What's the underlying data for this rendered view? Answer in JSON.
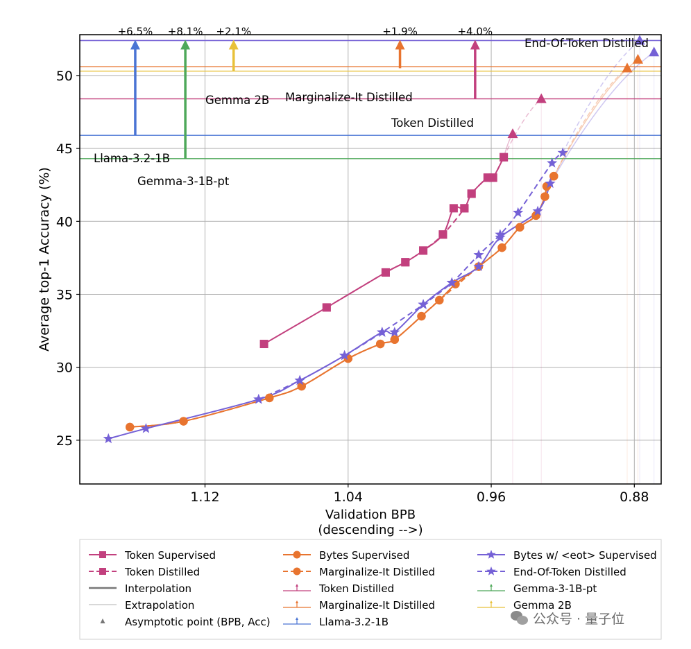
{
  "chart_data": {
    "type": "line",
    "xlabel": "Validation BPB",
    "xlabel_sub": "(descending -->)",
    "ylabel": "Average top-1 Accuracy (%)",
    "xlim": [
      1.19,
      0.865
    ],
    "ylim": [
      22,
      52.8
    ],
    "x_ticks": [
      1.12,
      1.04,
      0.96,
      0.88
    ],
    "x_tick_labels": [
      "1.12",
      "1.04",
      "0.96",
      "0.88"
    ],
    "y_ticks": [
      25,
      30,
      35,
      40,
      45,
      50
    ],
    "y_tick_labels": [
      "25",
      "30",
      "35",
      "40",
      "45",
      "50"
    ],
    "grid": true,
    "series": [
      {
        "key": "token_sup",
        "name": "Token Supervised",
        "color": "#c2407e",
        "dash": "solid",
        "marker": "square",
        "points": [
          [
            1.087,
            31.6
          ],
          [
            1.052,
            34.1
          ],
          [
            1.019,
            36.5
          ],
          [
            1.008,
            37.2
          ],
          [
            0.998,
            38.0
          ],
          [
            0.987,
            39.1
          ],
          [
            0.981,
            40.9
          ],
          [
            0.975,
            40.9
          ],
          [
            0.971,
            41.9
          ],
          [
            0.962,
            43.0
          ],
          [
            0.959,
            43.0
          ],
          [
            0.953,
            44.4
          ]
        ]
      },
      {
        "key": "token_dist",
        "name": "Token Distilled",
        "color": "#c2407e",
        "dash": "dashed",
        "marker": "square",
        "points": [
          [
            1.052,
            34.1
          ],
          [
            1.019,
            36.5
          ],
          [
            1.008,
            37.2
          ],
          [
            0.998,
            38.0
          ],
          [
            0.987,
            39.1
          ],
          [
            0.975,
            40.9
          ],
          [
            0.971,
            41.9
          ],
          [
            0.962,
            43.0
          ],
          [
            0.959,
            43.0
          ],
          [
            0.953,
            44.4
          ]
        ]
      },
      {
        "key": "bytes_sup",
        "name": "Bytes Supervised",
        "color": "#e8742f",
        "dash": "solid",
        "marker": "circle",
        "points": [
          [
            1.162,
            25.9
          ],
          [
            1.132,
            26.3
          ],
          [
            1.084,
            27.9
          ],
          [
            1.066,
            28.7
          ],
          [
            1.04,
            30.6
          ],
          [
            1.022,
            31.6
          ],
          [
            1.014,
            31.9
          ],
          [
            0.999,
            33.5
          ],
          [
            0.989,
            34.6
          ],
          [
            0.98,
            35.7
          ],
          [
            0.967,
            36.9
          ],
          [
            0.954,
            38.2
          ],
          [
            0.944,
            39.6
          ],
          [
            0.935,
            40.4
          ],
          [
            0.93,
            41.7
          ],
          [
            0.929,
            42.4
          ],
          [
            0.925,
            43.1
          ]
        ]
      },
      {
        "key": "marg_dist",
        "name": "Marginalize-It Distilled",
        "color": "#e8742f",
        "dash": "dashed",
        "marker": "circle",
        "points": [
          [
            1.162,
            25.9
          ],
          [
            1.132,
            26.3
          ],
          [
            1.084,
            27.9
          ],
          [
            1.066,
            28.7
          ],
          [
            1.04,
            30.6
          ],
          [
            1.022,
            31.6
          ],
          [
            1.014,
            31.9
          ],
          [
            0.999,
            33.5
          ],
          [
            0.989,
            34.6
          ],
          [
            0.967,
            36.9
          ],
          [
            0.954,
            38.2
          ],
          [
            0.944,
            39.6
          ],
          [
            0.935,
            40.4
          ],
          [
            0.93,
            41.7
          ],
          [
            0.929,
            42.4
          ],
          [
            0.925,
            43.1
          ]
        ]
      },
      {
        "key": "bytes_eot_sup",
        "name": "Bytes w/ <eot> Supervised",
        "color": "#7561d6",
        "dash": "solid",
        "marker": "star",
        "points": [
          [
            1.174,
            25.1
          ],
          [
            1.153,
            25.8
          ],
          [
            1.09,
            27.8
          ],
          [
            1.067,
            29.1
          ],
          [
            1.042,
            30.8
          ],
          [
            1.021,
            32.4
          ],
          [
            1.014,
            32.4
          ],
          [
            0.998,
            34.3
          ],
          [
            0.982,
            35.8
          ],
          [
            0.967,
            36.9
          ],
          [
            0.955,
            38.9
          ],
          [
            0.934,
            40.7
          ],
          [
            0.927,
            42.6
          ]
        ]
      },
      {
        "key": "eot_dist",
        "name": "End-Of-Token Distilled",
        "color": "#7561d6",
        "dash": "dashed",
        "marker": "star",
        "points": [
          [
            1.09,
            27.8
          ],
          [
            1.067,
            29.1
          ],
          [
            1.042,
            30.8
          ],
          [
            1.021,
            32.4
          ],
          [
            0.998,
            34.3
          ],
          [
            0.982,
            35.8
          ],
          [
            0.967,
            37.7
          ],
          [
            0.955,
            39.1
          ],
          [
            0.945,
            40.6
          ],
          [
            0.926,
            44.0
          ],
          [
            0.92,
            44.7
          ]
        ]
      }
    ],
    "asymptotes": [
      {
        "key": "token_dist",
        "bpb": 0.932,
        "acc": 48.4,
        "color": "#c2407e",
        "label": "Token Distilled"
      },
      {
        "key": "token_sup",
        "bpb": 0.948,
        "acc": 46.0,
        "color": "#c2407e"
      },
      {
        "key": "marg_dist",
        "bpb": 0.884,
        "acc": 50.5,
        "color": "#e8742f",
        "label": "Marginalize-It Distilled"
      },
      {
        "key": "bytes_sup",
        "bpb": 0.878,
        "acc": 51.1,
        "color": "#e8742f"
      },
      {
        "key": "eot_dist",
        "bpb": 0.877,
        "acc": 52.4,
        "color": "#7561d6",
        "label": "End-Of-Token Distilled"
      },
      {
        "key": "bytes_eot_sup",
        "bpb": 0.869,
        "acc": 51.6,
        "color": "#7561d6"
      }
    ],
    "reference_lines": [
      {
        "name": "Gemma 2B",
        "acc": 50.3,
        "color": "#e8c13a"
      },
      {
        "name": "Llama-3.2-1B",
        "acc": 45.9,
        "color": "#4a74d4"
      },
      {
        "name": "Gemma-3-1B-pt",
        "acc": 44.3,
        "color": "#4ea85a"
      }
    ],
    "top_line": {
      "acc": 52.4,
      "color": "#7561d6"
    },
    "extra_hlines": [
      {
        "acc": 50.6,
        "color": "#e8742f"
      },
      {
        "acc": 48.4,
        "color": "#c2407e"
      }
    ],
    "arrows": [
      {
        "label": "+6.5%",
        "bpb": 1.159,
        "from": 45.9,
        "to": 52.4,
        "color": "#4a74d4",
        "text": "Llama-3.2-1B"
      },
      {
        "label": "+8.1%",
        "bpb": 1.131,
        "from": 44.3,
        "to": 52.4,
        "color": "#4ea85a",
        "text": "Gemma-3-1B-pt"
      },
      {
        "label": "+2.1%",
        "bpb": 1.104,
        "from": 50.3,
        "to": 52.4,
        "color": "#e8c13a",
        "text": "Gemma 2B"
      },
      {
        "label": "+1.9%",
        "bpb": 1.011,
        "from": 50.5,
        "to": 52.4,
        "color": "#e8742f",
        "text": "Marginalize-It Distilled"
      },
      {
        "label": "+4.0%",
        "bpb": 0.969,
        "from": 48.4,
        "to": 52.4,
        "color": "#c2407e",
        "text": "Token Distilled"
      }
    ],
    "legend": {
      "placement": "bottom",
      "entries": [
        {
          "label": "Token Supervised",
          "color": "#c2407e",
          "style": "solid",
          "marker": "square"
        },
        {
          "label": "Bytes Supervised",
          "color": "#e8742f",
          "style": "solid",
          "marker": "circle"
        },
        {
          "label": "Bytes w/ <eot> Supervised",
          "color": "#7561d6",
          "style": "solid",
          "marker": "star"
        },
        {
          "label": "Token Distilled",
          "color": "#c2407e",
          "style": "dashed",
          "marker": "square"
        },
        {
          "label": "Marginalize-It Distilled",
          "color": "#e8742f",
          "style": "dashed",
          "marker": "circle"
        },
        {
          "label": "End-Of-Token Distilled",
          "color": "#7561d6",
          "style": "dashed",
          "marker": "star"
        },
        {
          "label": "Interpolation",
          "color": "#777777",
          "style": "thick",
          "marker": "none"
        },
        {
          "label": "Token Distilled",
          "color": "#c2407e",
          "style": "arrow",
          "marker": "none"
        },
        {
          "label": "Gemma-3-1B-pt",
          "color": "#4ea85a",
          "style": "arrow",
          "marker": "none"
        },
        {
          "label": "Extrapolation",
          "color": "#cccccc",
          "style": "thin",
          "marker": "none"
        },
        {
          "label": "Marginalize-It Distilled",
          "color": "#e8742f",
          "style": "arrow",
          "marker": "none"
        },
        {
          "label": "Gemma 2B",
          "color": "#e8c13a",
          "style": "arrow",
          "marker": "none"
        },
        {
          "label": "Asymptotic point (BPB, Acc)",
          "color": "#777777",
          "style": "none",
          "marker": "triangle"
        },
        {
          "label": "Llama-3.2-1B",
          "color": "#4a74d4",
          "style": "arrow",
          "marker": "none"
        }
      ]
    }
  },
  "watermark": {
    "text": "公众号 · 量子位"
  }
}
